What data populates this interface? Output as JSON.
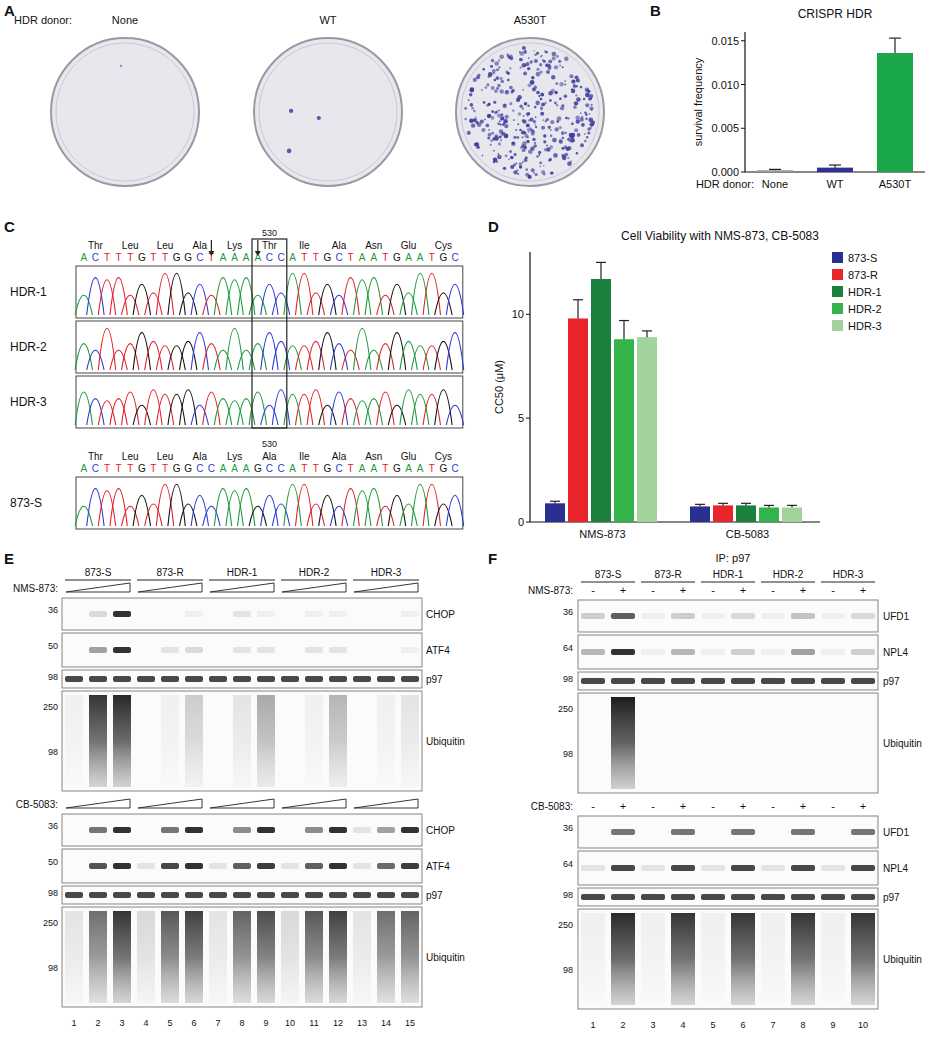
{
  "panel_labels": [
    "A",
    "B",
    "C",
    "D",
    "E",
    "F"
  ],
  "panel_a": {
    "donor_label": "HDR donor:",
    "dishes": [
      "None",
      "WT",
      "A530T"
    ],
    "colonies": [
      1,
      3,
      380
    ]
  },
  "chart_data": [
    {
      "type": "bar",
      "title": "CRISPR HDR",
      "xlabel": "HDR donor:",
      "ylabel": "survival frequency",
      "categories": [
        "None",
        "WT",
        "A530T"
      ],
      "values": [
        0.0002,
        0.0005,
        0.0136
      ],
      "errors": [
        0.0001,
        0.0003,
        0.0017
      ],
      "colors": [
        "#9a9a9a",
        "#2e3192",
        "#1aa84b"
      ],
      "ylim": [
        0,
        0.016
      ],
      "yticks": [
        {
          "value": 0,
          "label": "0.000"
        },
        {
          "value": 0.005,
          "label": "0.005"
        },
        {
          "value": 0.01,
          "label": "0.010"
        },
        {
          "value": 0.015,
          "label": "0.015"
        }
      ]
    },
    {
      "type": "bar",
      "title": "Cell Viability with NMS-873, CB-5083",
      "ylabel": "CC50 (μM)",
      "categories": [
        "NMS-873",
        "CB-5083"
      ],
      "series": [
        {
          "name": "873-S",
          "color": "#2b2f8f",
          "values": [
            0.9,
            0.75
          ],
          "errors": [
            0.1,
            0.1
          ]
        },
        {
          "name": "873-R",
          "color": "#e8252a",
          "values": [
            9.8,
            0.8
          ],
          "errors": [
            0.9,
            0.1
          ]
        },
        {
          "name": "HDR-1",
          "color": "#1b7f3e",
          "values": [
            11.7,
            0.8
          ],
          "errors": [
            0.8,
            0.1
          ]
        },
        {
          "name": "HDR-2",
          "color": "#33b44a",
          "values": [
            8.8,
            0.7
          ],
          "errors": [
            0.9,
            0.1
          ]
        },
        {
          "name": "HDR-3",
          "color": "#a3d39c",
          "values": [
            8.9,
            0.7
          ],
          "errors": [
            0.3,
            0.1
          ]
        }
      ],
      "ylim": [
        0,
        13
      ],
      "yticks": [
        0,
        5,
        10
      ],
      "legend": "top-right"
    }
  ],
  "panel_c": {
    "groups": [
      {
        "codon_number": "530",
        "codon_index": 5,
        "highlight_codon": 5,
        "arrows": [
          11,
          15
        ],
        "amino_acids": [
          "Thr",
          "Leu",
          "Leu",
          "Ala",
          "Lys",
          "Thr",
          "Ile",
          "Ala",
          "Asn",
          "Glu",
          "Cys"
        ],
        "sequence": [
          "A",
          "C",
          "T",
          "T",
          "T",
          "G",
          "T",
          "T",
          "G",
          "G",
          "C",
          "T",
          "A",
          "A",
          "A",
          "A",
          "C",
          "C",
          "A",
          "T",
          "T",
          "G",
          "C",
          "T",
          "A",
          "A",
          "T",
          "G",
          "A",
          "A",
          "T",
          "G",
          "C"
        ],
        "tracks": [
          "HDR-1",
          "HDR-2",
          "HDR-3"
        ]
      },
      {
        "codon_number": "530",
        "codon_index": 5,
        "amino_acids": [
          "Thr",
          "Leu",
          "Leu",
          "Ala",
          "Lys",
          "Ala",
          "Ile",
          "Ala",
          "Asn",
          "Glu",
          "Cys"
        ],
        "sequence": [
          "A",
          "C",
          "T",
          "T",
          "T",
          "G",
          "T",
          "T",
          "G",
          "G",
          "C",
          "C",
          "A",
          "A",
          "A",
          "G",
          "C",
          "C",
          "A",
          "T",
          "T",
          "G",
          "C",
          "T",
          "A",
          "A",
          "T",
          "G",
          "A",
          "A",
          "T",
          "G",
          "C"
        ],
        "tracks": [
          "873-S"
        ]
      }
    ]
  },
  "panel_e": {
    "lanes": [
      "873-S",
      "873-R",
      "HDR-1",
      "HDR-2",
      "HDR-3"
    ],
    "lane_numbers": [
      1,
      2,
      3,
      4,
      5,
      6,
      7,
      8,
      9,
      10,
      11,
      12,
      13,
      14,
      15
    ],
    "blocks": [
      {
        "treatment": "NMS-873:",
        "blots": [
          {
            "label": "CHOP",
            "markers": [
              36
            ],
            "bands": [
              0,
              0.15,
              0.9,
              0,
              0,
              0.05,
              0,
              0.1,
              0.05,
              0,
              0.05,
              0.05,
              0,
              0,
              0.05
            ]
          },
          {
            "label": "ATF4",
            "markers": [
              50
            ],
            "bands": [
              0,
              0.4,
              0.9,
              0,
              0.1,
              0.15,
              0,
              0.1,
              0.1,
              0,
              0.1,
              0.1,
              0,
              0,
              0.05
            ]
          },
          {
            "label": "p97",
            "markers": [
              98
            ],
            "bands": [
              0.8,
              0.8,
              0.8,
              0.8,
              0.8,
              0.8,
              0.8,
              0.8,
              0.8,
              0.8,
              0.8,
              0.8,
              0.8,
              0.8,
              0.8
            ]
          },
          {
            "label": "Ubiquitin",
            "markers": [
              250,
              98
            ],
            "bands": [
              0.05,
              0.85,
              0.9,
              0,
              0.05,
              0.2,
              0,
              0.1,
              0.35,
              0,
              0.05,
              0.3,
              0,
              0.05,
              0.1
            ]
          }
        ]
      },
      {
        "treatment": "CB-5083:",
        "blots": [
          {
            "label": "CHOP",
            "markers": [
              36
            ],
            "bands": [
              0,
              0.6,
              0.9,
              0,
              0.6,
              0.9,
              0,
              0.5,
              0.9,
              0,
              0.5,
              0.9,
              0.1,
              0.4,
              0.9
            ]
          },
          {
            "label": "ATF4",
            "markers": [
              50
            ],
            "bands": [
              0,
              0.75,
              0.9,
              0.1,
              0.8,
              0.9,
              0.1,
              0.7,
              0.85,
              0.1,
              0.7,
              0.9,
              0.1,
              0.65,
              0.85
            ]
          },
          {
            "label": "p97",
            "markers": [
              98
            ],
            "bands": [
              0.8,
              0.8,
              0.8,
              0.8,
              0.8,
              0.8,
              0.8,
              0.8,
              0.8,
              0.8,
              0.8,
              0.8,
              0.8,
              0.8,
              0.8
            ]
          },
          {
            "label": "Ubiquitin",
            "markers": [
              250,
              98
            ],
            "bands": [
              0.1,
              0.6,
              0.85,
              0.15,
              0.7,
              0.8,
              0.1,
              0.65,
              0.75,
              0.15,
              0.7,
              0.8,
              0.1,
              0.6,
              0.65
            ]
          }
        ]
      }
    ]
  },
  "panel_f": {
    "title": "IP: p97",
    "lanes": [
      "873-S",
      "873-R",
      "HDR-1",
      "HDR-2",
      "HDR-3"
    ],
    "lane_numbers": [
      1,
      2,
      3,
      4,
      5,
      6,
      7,
      8,
      9,
      10
    ],
    "blocks": [
      {
        "treatment": "NMS-873:",
        "signs": [
          "-",
          "+",
          "-",
          "+",
          "-",
          "+",
          "-",
          "+",
          "-",
          "+"
        ],
        "blots": [
          {
            "label": "UFD1",
            "markers": [
              36
            ],
            "bands": [
              0.2,
              0.7,
              0.05,
              0.2,
              0.05,
              0.15,
              0.05,
              0.25,
              0.05,
              0.15
            ]
          },
          {
            "label": "NPL4",
            "markers": [
              64
            ],
            "bands": [
              0.3,
              0.9,
              0.05,
              0.3,
              0.05,
              0.2,
              0.05,
              0.4,
              0.05,
              0.2
            ]
          },
          {
            "label": "p97",
            "markers": [
              98
            ],
            "bands": [
              0.8,
              0.8,
              0.8,
              0.8,
              0.8,
              0.8,
              0.8,
              0.8,
              0.8,
              0.8
            ]
          },
          {
            "label": "Ubiquitin",
            "markers": [
              250,
              98
            ],
            "bands": [
              0,
              0.95,
              0,
              0,
              0,
              0,
              0,
              0,
              0,
              0
            ]
          }
        ]
      },
      {
        "treatment": "CB-5083:",
        "signs": [
          "-",
          "+",
          "-",
          "+",
          "-",
          "+",
          "-",
          "+",
          "-",
          "+"
        ],
        "blots": [
          {
            "label": "UFD1",
            "markers": [
              36
            ],
            "bands": [
              0,
              0.6,
              0,
              0.6,
              0,
              0.6,
              0,
              0.6,
              0,
              0.6
            ]
          },
          {
            "label": "NPL4",
            "markers": [
              64
            ],
            "bands": [
              0.1,
              0.8,
              0.1,
              0.8,
              0.1,
              0.8,
              0.1,
              0.8,
              0.1,
              0.8
            ]
          },
          {
            "label": "p97",
            "markers": [
              98
            ],
            "bands": [
              0.8,
              0.8,
              0.8,
              0.8,
              0.8,
              0.8,
              0.8,
              0.8,
              0.8,
              0.8
            ]
          },
          {
            "label": "Ubiquitin",
            "markers": [
              250,
              98
            ],
            "bands": [
              0.05,
              0.9,
              0.05,
              0.85,
              0.05,
              0.85,
              0.05,
              0.85,
              0.05,
              0.85
            ]
          }
        ]
      }
    ]
  }
}
